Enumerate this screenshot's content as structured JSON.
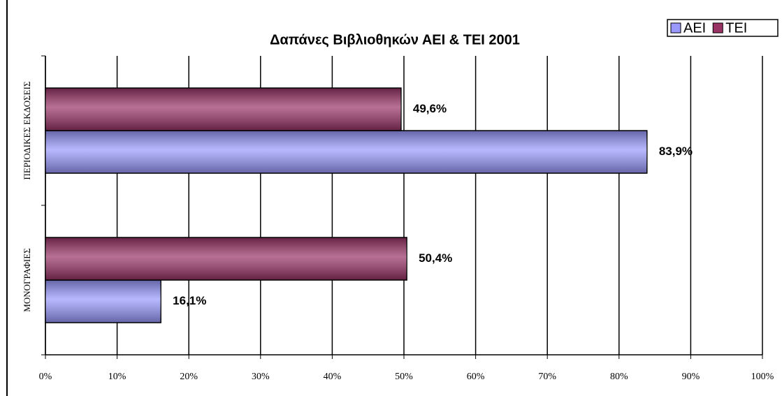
{
  "chart_data": {
    "type": "bar",
    "orientation": "horizontal",
    "title": "Δαπάνες Βιβλιοθηκών ΑΕΙ & ΤΕΙ 2001",
    "categories": [
      "ΜΟΝΟΓΡΑΦΙΕΣ",
      "ΠΕΡΙΟΔΙΚΕΣ ΕΚΔΟΣΕΙΣ"
    ],
    "series": [
      {
        "name": "ΑΕΙ",
        "color": "#9999ff",
        "values": [
          16.1,
          83.9
        ],
        "value_labels": [
          "16,1%",
          "83,9%"
        ]
      },
      {
        "name": "ΤΕΙ",
        "color": "#993366",
        "values": [
          50.4,
          49.6
        ],
        "value_labels": [
          "50,4%",
          "49,6%"
        ]
      }
    ],
    "xlim": [
      0,
      100
    ],
    "xticks": [
      {
        "value": 0,
        "label": "0%"
      },
      {
        "value": 10,
        "label": "10%"
      },
      {
        "value": 20,
        "label": "20%"
      },
      {
        "value": 30,
        "label": "30%"
      },
      {
        "value": 40,
        "label": "40%"
      },
      {
        "value": 50,
        "label": "50%"
      },
      {
        "value": 60,
        "label": "60%"
      },
      {
        "value": 70,
        "label": "70%"
      },
      {
        "value": 80,
        "label": "80%"
      },
      {
        "value": 90,
        "label": "90%"
      },
      {
        "value": 100,
        "label": "100%"
      }
    ],
    "grid": true,
    "legend": "top-right"
  }
}
